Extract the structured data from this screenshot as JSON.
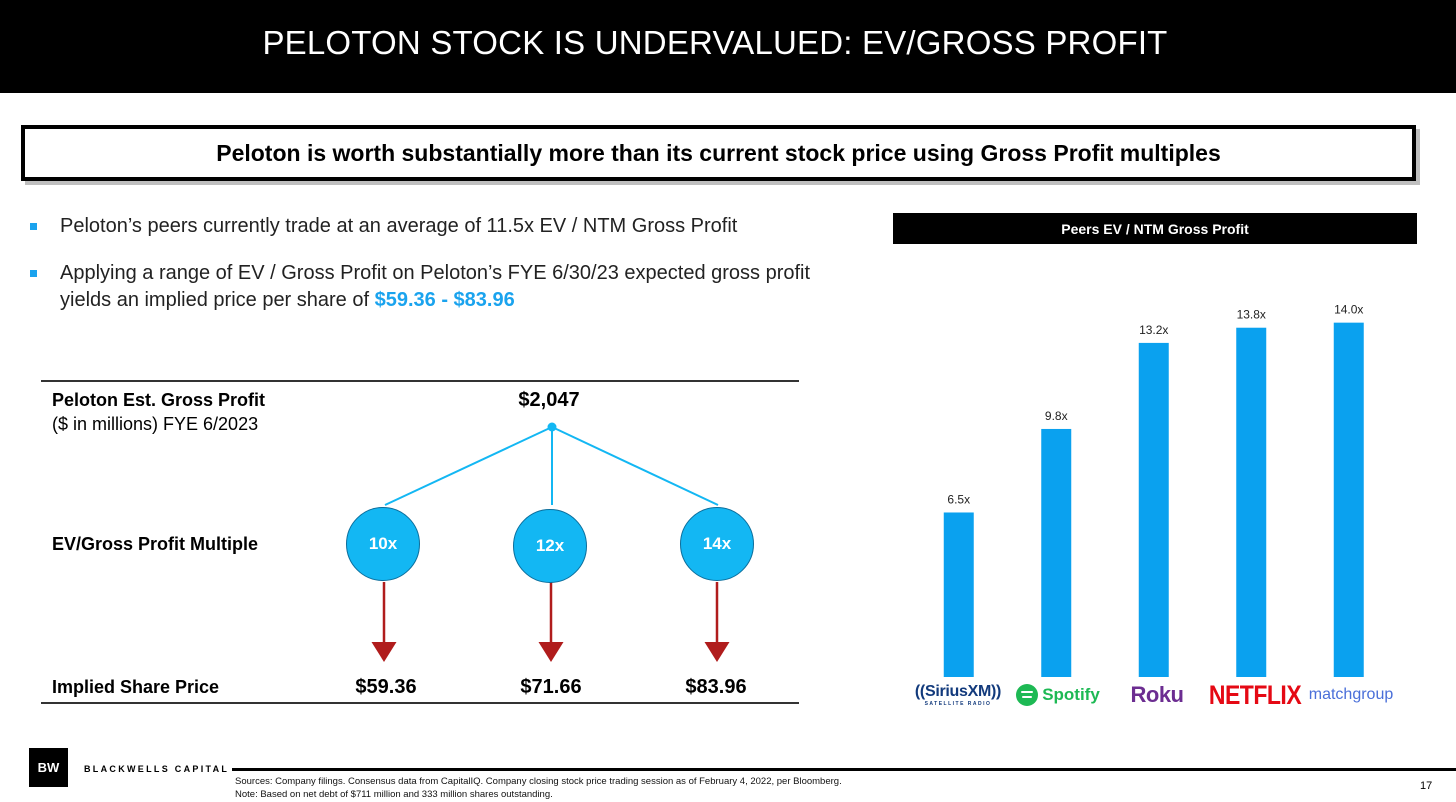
{
  "header": {
    "title": "PELOTON STOCK IS UNDERVALUED: EV/GROSS PROFIT"
  },
  "headline": "Peloton is worth substantially more than its current stock price using Gross Profit multiples",
  "bullets": {
    "b1": "Peloton’s peers currently trade at an average of 11.5x EV / NTM Gross Profit",
    "b2_text": "Applying a range of EV / Gross Profit on Peloton’s FYE 6/30/23 expected gross profit yields an implied price per share of ",
    "b2_highlight": "$59.36 - $83.96",
    "accent_color": "#1aa3ee"
  },
  "valuation": {
    "gross_profit_label": "Peloton Est. Gross Profit",
    "gross_profit_sub": "($ in millions) FYE 6/2023",
    "gross_profit_value": "$2,047",
    "multiple_label": "EV/Gross Profit Multiple",
    "multiples": [
      "10x",
      "12x",
      "14x"
    ],
    "price_label": "Implied Share Price",
    "prices": [
      "$59.36",
      "$71.66",
      "$83.96"
    ],
    "node_color": "#13b7f3",
    "arrow_color": "#b01c1c"
  },
  "chart_data": {
    "type": "bar",
    "title": "Peers EV / NTM Gross Profit",
    "categories": [
      "SiriusXM",
      "Spotify",
      "Roku",
      "Netflix",
      "Match Group"
    ],
    "values": [
      6.5,
      9.8,
      13.2,
      13.8,
      14.0
    ],
    "data_labels": [
      "6.5x",
      "9.8x",
      "13.2x",
      "13.8x",
      "14.0x"
    ],
    "ylim": [
      0,
      14.5
    ],
    "grid": false,
    "bar_color": "#0aa1ef"
  },
  "logos": {
    "sirius": "((SiriusXM))",
    "sirius_sub": "SATELLITE RADIO",
    "spotify": "Spotify",
    "roku": "Roku",
    "netflix": "NETFLIX",
    "match": "matchgroup"
  },
  "footer": {
    "brand_mark": "BW",
    "brand_name": "BLACKWELLS CAPITAL",
    "sources": "Sources: Company filings. Consensus data from CapitalIQ. Company closing stock price trading session as of February 4, 2022, per Bloomberg.",
    "note": "Note: Based on net debt of $711 million and 333 million shares outstanding.",
    "page_number": "17"
  }
}
